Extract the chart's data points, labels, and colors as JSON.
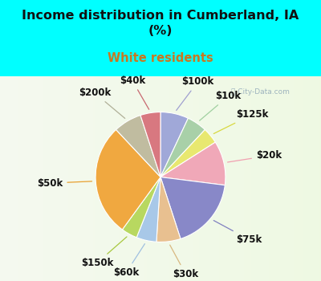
{
  "title": "Income distribution in Cumberland, IA\n(%)",
  "subtitle": "White residents",
  "title_color": "#111111",
  "subtitle_color": "#c87820",
  "bg_outer": "#00ffff",
  "bg_chart_tl": "#d0ede8",
  "labels": [
    "$100k",
    "$10k",
    "$125k",
    "$20k",
    "$75k",
    "$30k",
    "$60k",
    "$150k",
    "$50k",
    "$200k",
    "$40k"
  ],
  "values": [
    7,
    5,
    4,
    11,
    18,
    6,
    5,
    4,
    28,
    7,
    5
  ],
  "colors": [
    "#a0a8d8",
    "#a8d0a8",
    "#e8e870",
    "#f0a8b8",
    "#8888c8",
    "#e8c090",
    "#a8c8e8",
    "#b8d860",
    "#f0a840",
    "#c0bca0",
    "#d87880"
  ],
  "line_colors": [
    "#a0a0d0",
    "#a0d0a0",
    "#d8d840",
    "#f0a0b0",
    "#8080c0",
    "#d8b880",
    "#a0c0e0",
    "#a8c840",
    "#e8a030",
    "#b0b098",
    "#c86870"
  ],
  "label_fontsize": 8.5,
  "figsize": [
    4.0,
    3.5
  ],
  "dpi": 100
}
